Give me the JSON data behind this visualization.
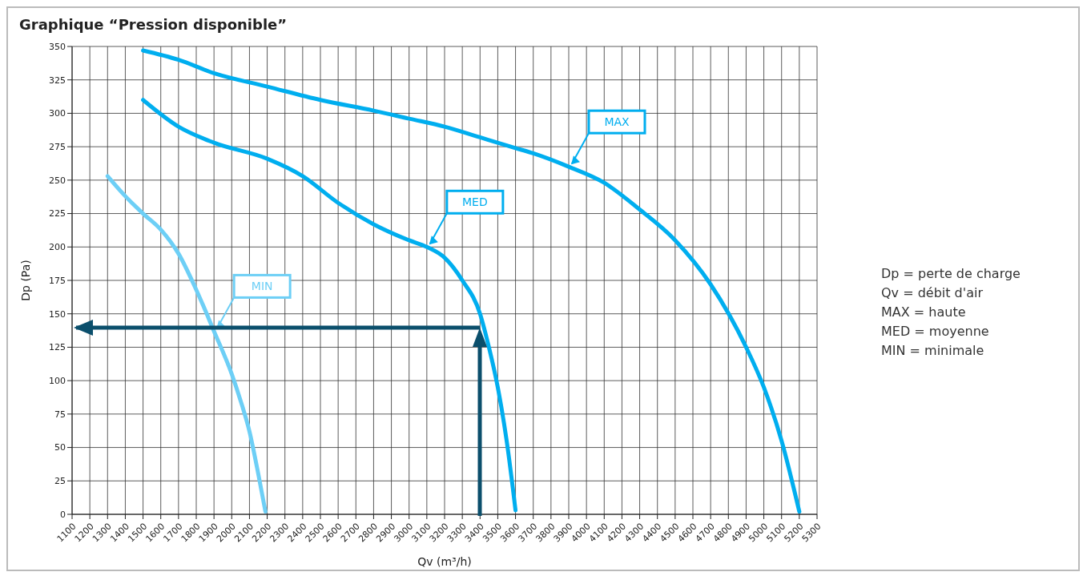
{
  "chart_data": {
    "type": "line",
    "title": "Graphique “Pression disponible”",
    "xlabel": "Qv (m³/h)",
    "ylabel": "Dp (Pa)",
    "xlim": [
      1100,
      5300
    ],
    "xticks": [
      1100,
      1200,
      1300,
      1400,
      1500,
      1600,
      1700,
      1800,
      1900,
      2000,
      2100,
      2200,
      2300,
      2400,
      2500,
      2600,
      2700,
      2800,
      2900,
      3000,
      3100,
      3200,
      3300,
      3400,
      3500,
      3600,
      3700,
      3800,
      3900,
      4000,
      4100,
      4200,
      4300,
      4400,
      4500,
      4600,
      4700,
      4800,
      4900,
      5000,
      5100,
      5200,
      5300
    ],
    "ylim": [
      0,
      350
    ],
    "yticks": [
      0,
      25,
      50,
      75,
      100,
      125,
      150,
      175,
      200,
      225,
      250,
      275,
      300,
      325,
      350
    ],
    "grid": true,
    "marker": "none",
    "line_style": "solid",
    "series": [
      {
        "name": "MAX",
        "color": "#00aeef",
        "x": [
          1500,
          1700,
          1900,
          2200,
          2500,
          2800,
          3000,
          3200,
          3400,
          3600,
          3700,
          3900,
          4100,
          4300,
          4500,
          4700,
          4900,
          5000,
          5100,
          5200
        ],
        "values": [
          347,
          340,
          330,
          320,
          310,
          302,
          296,
          290,
          282,
          274,
          270,
          260,
          248,
          228,
          205,
          172,
          125,
          95,
          55,
          2
        ]
      },
      {
        "name": "MED",
        "color": "#00aeef",
        "x": [
          1500,
          1700,
          1900,
          2200,
          2400,
          2600,
          2800,
          3000,
          3100,
          3200,
          3300,
          3400,
          3450,
          3500,
          3550,
          3600
        ],
        "values": [
          310,
          290,
          278,
          266,
          253,
          233,
          217,
          205,
          200,
          192,
          175,
          150,
          125,
          95,
          55,
          3
        ]
      },
      {
        "name": "MIN",
        "color": "#6dcff6",
        "x": [
          1300,
          1400,
          1500,
          1600,
          1700,
          1800,
          1900,
          2000,
          2050,
          2100,
          2150,
          2190
        ],
        "values": [
          253,
          238,
          225,
          213,
          195,
          168,
          137,
          105,
          85,
          62,
          30,
          2
        ]
      }
    ],
    "annotations": [
      "Dp = perte de charge",
      "Qv = débit d'air",
      "MAX = haute",
      "MED = moyenne",
      "MIN = minimale"
    ]
  }
}
